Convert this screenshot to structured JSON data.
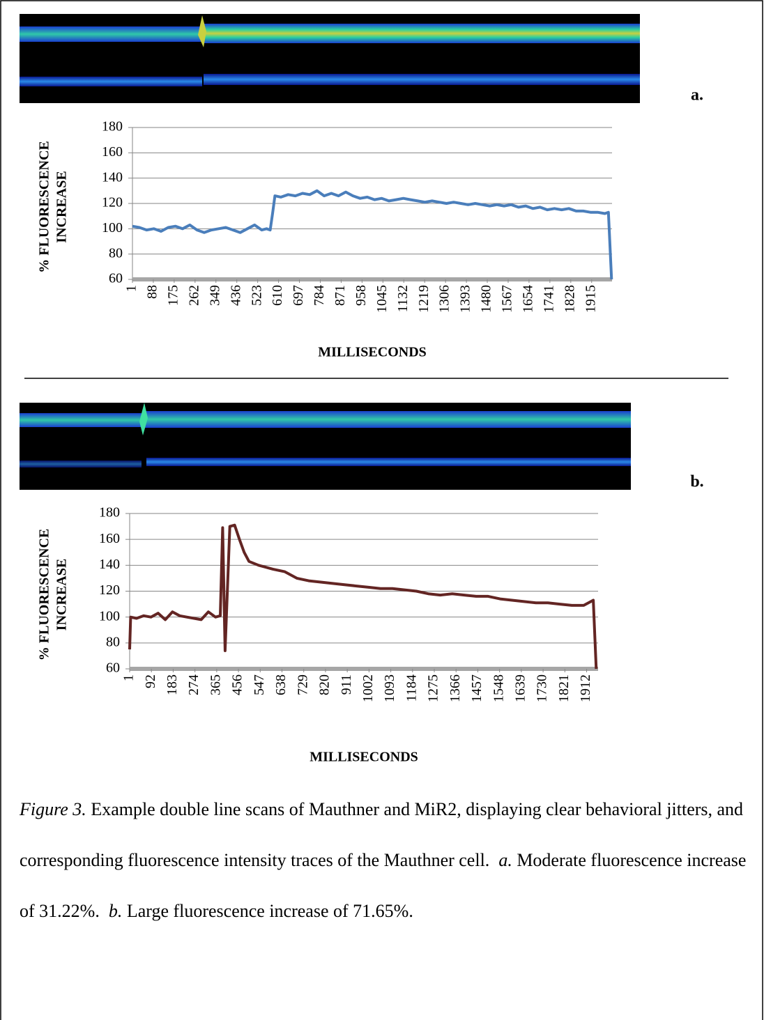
{
  "chart_data": [
    {
      "type": "line",
      "panel_label": "a.",
      "ylabel": [
        "% FLUORESCENCE",
        "INCREASE"
      ],
      "xlabel": "MILLISECONDS",
      "color": "#4a7ebb",
      "xlim": [
        1,
        2000
      ],
      "ylim": [
        60,
        180
      ],
      "yticks": [
        60,
        80,
        100,
        120,
        140,
        160,
        180
      ],
      "grid": true,
      "xticks": [
        1,
        88,
        175,
        262,
        349,
        436,
        523,
        610,
        697,
        784,
        871,
        958,
        1045,
        1132,
        1219,
        1306,
        1393,
        1480,
        1567,
        1654,
        1741,
        1828,
        1915
      ],
      "x": [
        1,
        30,
        60,
        90,
        120,
        150,
        180,
        210,
        240,
        270,
        300,
        330,
        360,
        390,
        420,
        450,
        480,
        510,
        540,
        560,
        575,
        585,
        595,
        620,
        650,
        680,
        710,
        740,
        770,
        800,
        830,
        860,
        890,
        920,
        950,
        980,
        1010,
        1040,
        1070,
        1100,
        1130,
        1160,
        1190,
        1220,
        1250,
        1280,
        1310,
        1340,
        1370,
        1400,
        1430,
        1460,
        1490,
        1520,
        1550,
        1580,
        1610,
        1640,
        1670,
        1700,
        1730,
        1760,
        1790,
        1820,
        1850,
        1880,
        1910,
        1940,
        1970,
        1985,
        1998
      ],
      "values": [
        102,
        101,
        99,
        100,
        98,
        101,
        102,
        100,
        103,
        99,
        97,
        99,
        100,
        101,
        99,
        97,
        100,
        103,
        99,
        100,
        99,
        112,
        126,
        125,
        127,
        126,
        128,
        127,
        130,
        126,
        128,
        126,
        129,
        126,
        124,
        125,
        123,
        124,
        122,
        123,
        124,
        123,
        122,
        121,
        122,
        121,
        120,
        121,
        120,
        119,
        120,
        119,
        118,
        119,
        118,
        119,
        117,
        118,
        116,
        117,
        115,
        116,
        115,
        116,
        114,
        114,
        113,
        113,
        112,
        113,
        60
      ]
    },
    {
      "type": "line",
      "panel_label": "b.",
      "ylabel": [
        "% FLUORESCENCE",
        "INCREASE"
      ],
      "xlabel": "MILLISECONDS",
      "color": "#632523",
      "xlim": [
        1,
        1960
      ],
      "ylim": [
        60,
        180
      ],
      "yticks": [
        60,
        80,
        100,
        120,
        140,
        160,
        180
      ],
      "grid": true,
      "xticks": [
        1,
        92,
        183,
        274,
        365,
        456,
        547,
        638,
        729,
        820,
        911,
        1002,
        1093,
        1184,
        1275,
        1366,
        1457,
        1548,
        1639,
        1730,
        1821,
        1912
      ],
      "x": [
        1,
        5,
        30,
        60,
        90,
        120,
        150,
        180,
        210,
        240,
        270,
        300,
        330,
        360,
        380,
        390,
        400,
        420,
        440,
        460,
        480,
        500,
        540,
        600,
        650,
        700,
        750,
        800,
        850,
        900,
        950,
        1000,
        1050,
        1100,
        1150,
        1200,
        1250,
        1300,
        1350,
        1400,
        1450,
        1500,
        1550,
        1600,
        1650,
        1700,
        1750,
        1800,
        1850,
        1900,
        1940,
        1952
      ],
      "values": [
        75,
        100,
        99,
        101,
        100,
        103,
        98,
        104,
        101,
        100,
        99,
        98,
        104,
        100,
        101,
        169,
        74,
        170,
        171,
        160,
        150,
        143,
        140,
        137,
        135,
        130,
        128,
        127,
        126,
        125,
        124,
        123,
        122,
        122,
        121,
        120,
        118,
        117,
        118,
        117,
        116,
        116,
        114,
        113,
        112,
        111,
        111,
        110,
        109,
        109,
        113,
        60
      ]
    }
  ],
  "caption": {
    "figure_label": "Figure 3.",
    "text": "Example double line scans of Mauthner and MiR2, displaying clear behavioral jitters, and corresponding fluorescence intensity traces of the Mauthner cell.",
    "parts": [
      {
        "label": "a.",
        "text": "Moderate fluorescence increase of 31.22%."
      },
      {
        "label": "b.",
        "text": "Large fluorescence increase of 71.65%."
      }
    ]
  }
}
